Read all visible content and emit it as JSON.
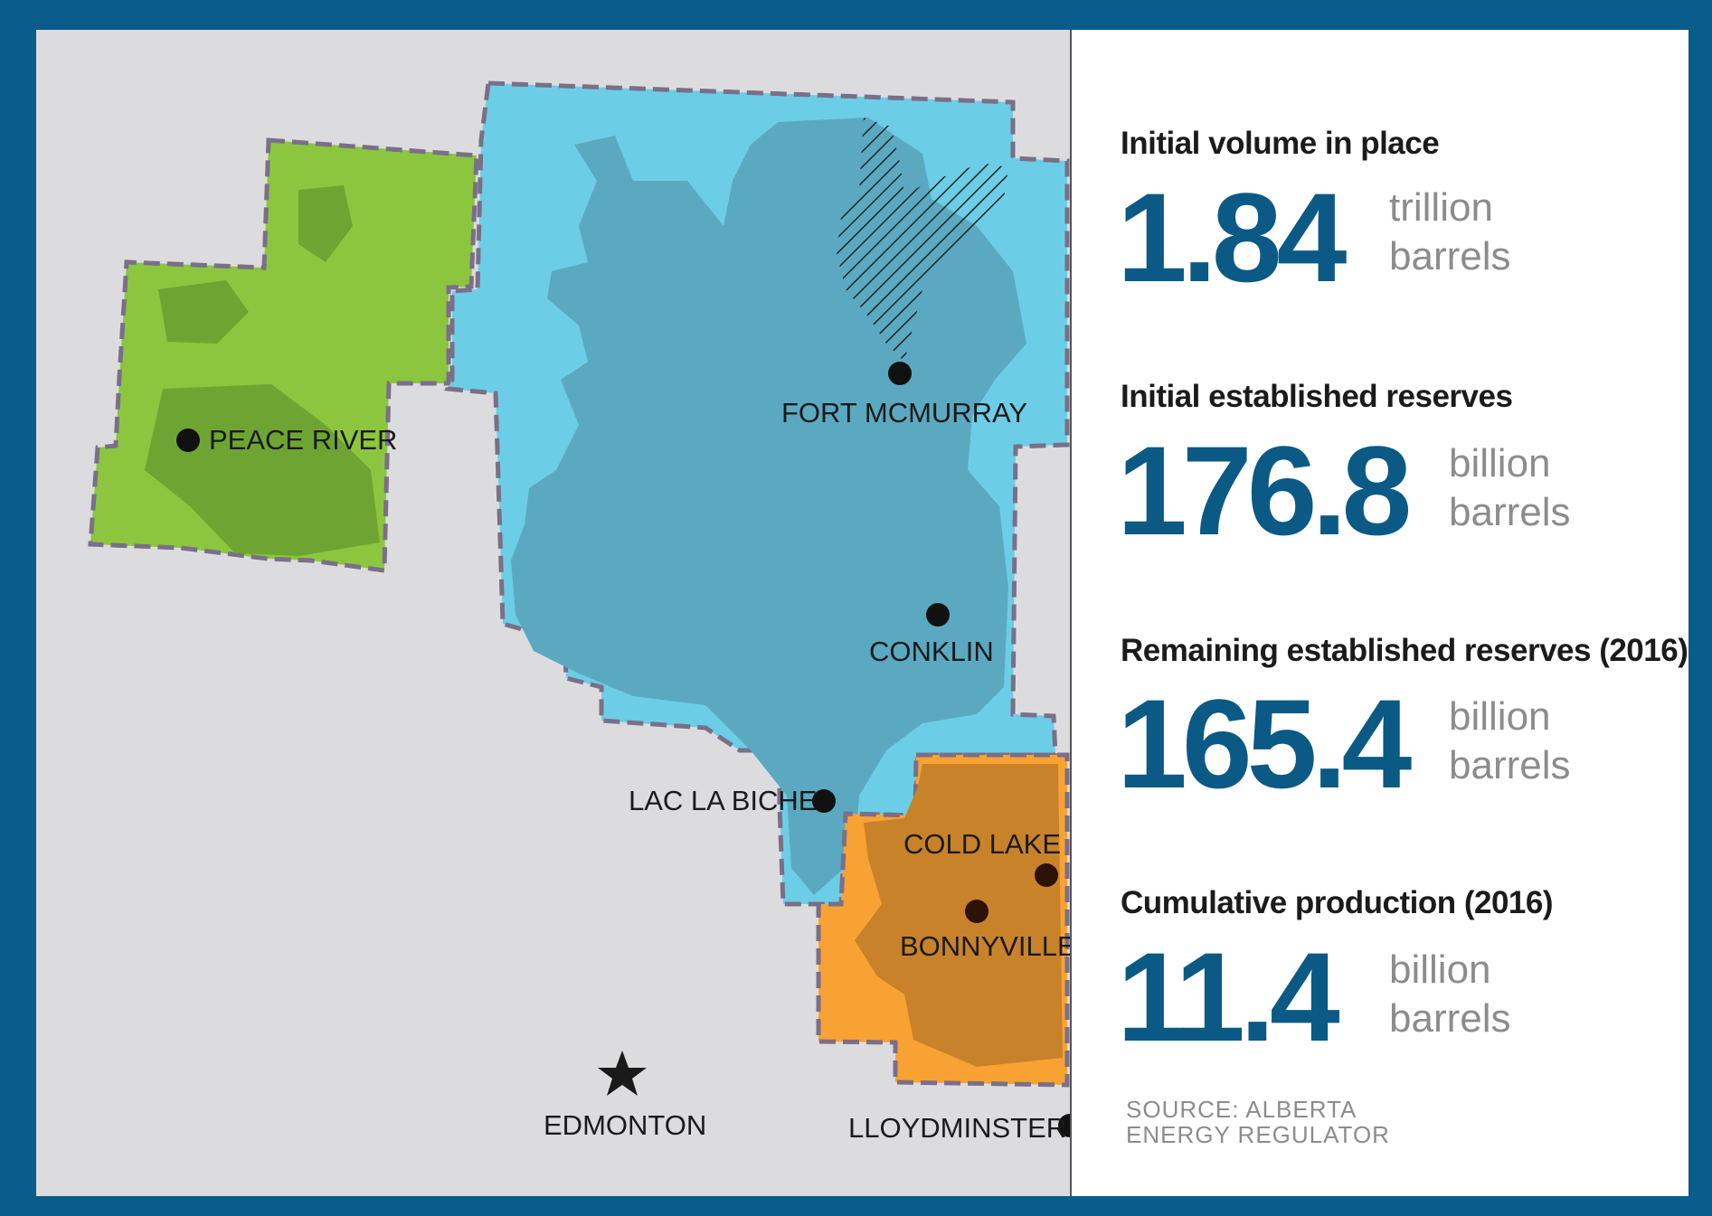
{
  "colors": {
    "frame": "#0a5c8a",
    "map_background": "#dcdcdf",
    "athabasca_light": "#6ccde6",
    "athabasca_dark": "#5ba9c1",
    "peace_river_light": "#8cc63f",
    "peace_river_dark": "#6ea532",
    "cold_lake_light": "#f7a233",
    "cold_lake_dark": "#c8822a",
    "boundary": "#7a6f88",
    "stat_value": "#0b5a85",
    "unit_text": "#8c8c8c"
  },
  "map": {
    "cities": [
      {
        "label": "PEACE RIVER"
      },
      {
        "label": "FORT MCMURRAY"
      },
      {
        "label": "CONKLIN"
      },
      {
        "label": "LAC LA BICHE"
      },
      {
        "label": "COLD LAKE"
      },
      {
        "label": "BONNYVILLE"
      },
      {
        "label": "EDMONTON",
        "marker": "star-icon"
      },
      {
        "label": "LLOYDMINSTER"
      }
    ]
  },
  "stats": [
    {
      "label": "Initial volume in place",
      "value": "1.84",
      "unit_line1": "trillion",
      "unit_line2": "barrels"
    },
    {
      "label": "Initial established reserves",
      "value": "176.8",
      "unit_line1": "billion",
      "unit_line2": "barrels"
    },
    {
      "label": "Remaining established reserves (2016)",
      "value": "165.4",
      "unit_line1": "billion",
      "unit_line2": "barrels"
    },
    {
      "label": "Cumulative production (2016)",
      "value": "11.4",
      "unit_line1": "billion",
      "unit_line2": "barrels"
    }
  ],
  "source": {
    "line1": "SOURCE: ALBERTA",
    "line2": "ENERGY REGULATOR"
  }
}
